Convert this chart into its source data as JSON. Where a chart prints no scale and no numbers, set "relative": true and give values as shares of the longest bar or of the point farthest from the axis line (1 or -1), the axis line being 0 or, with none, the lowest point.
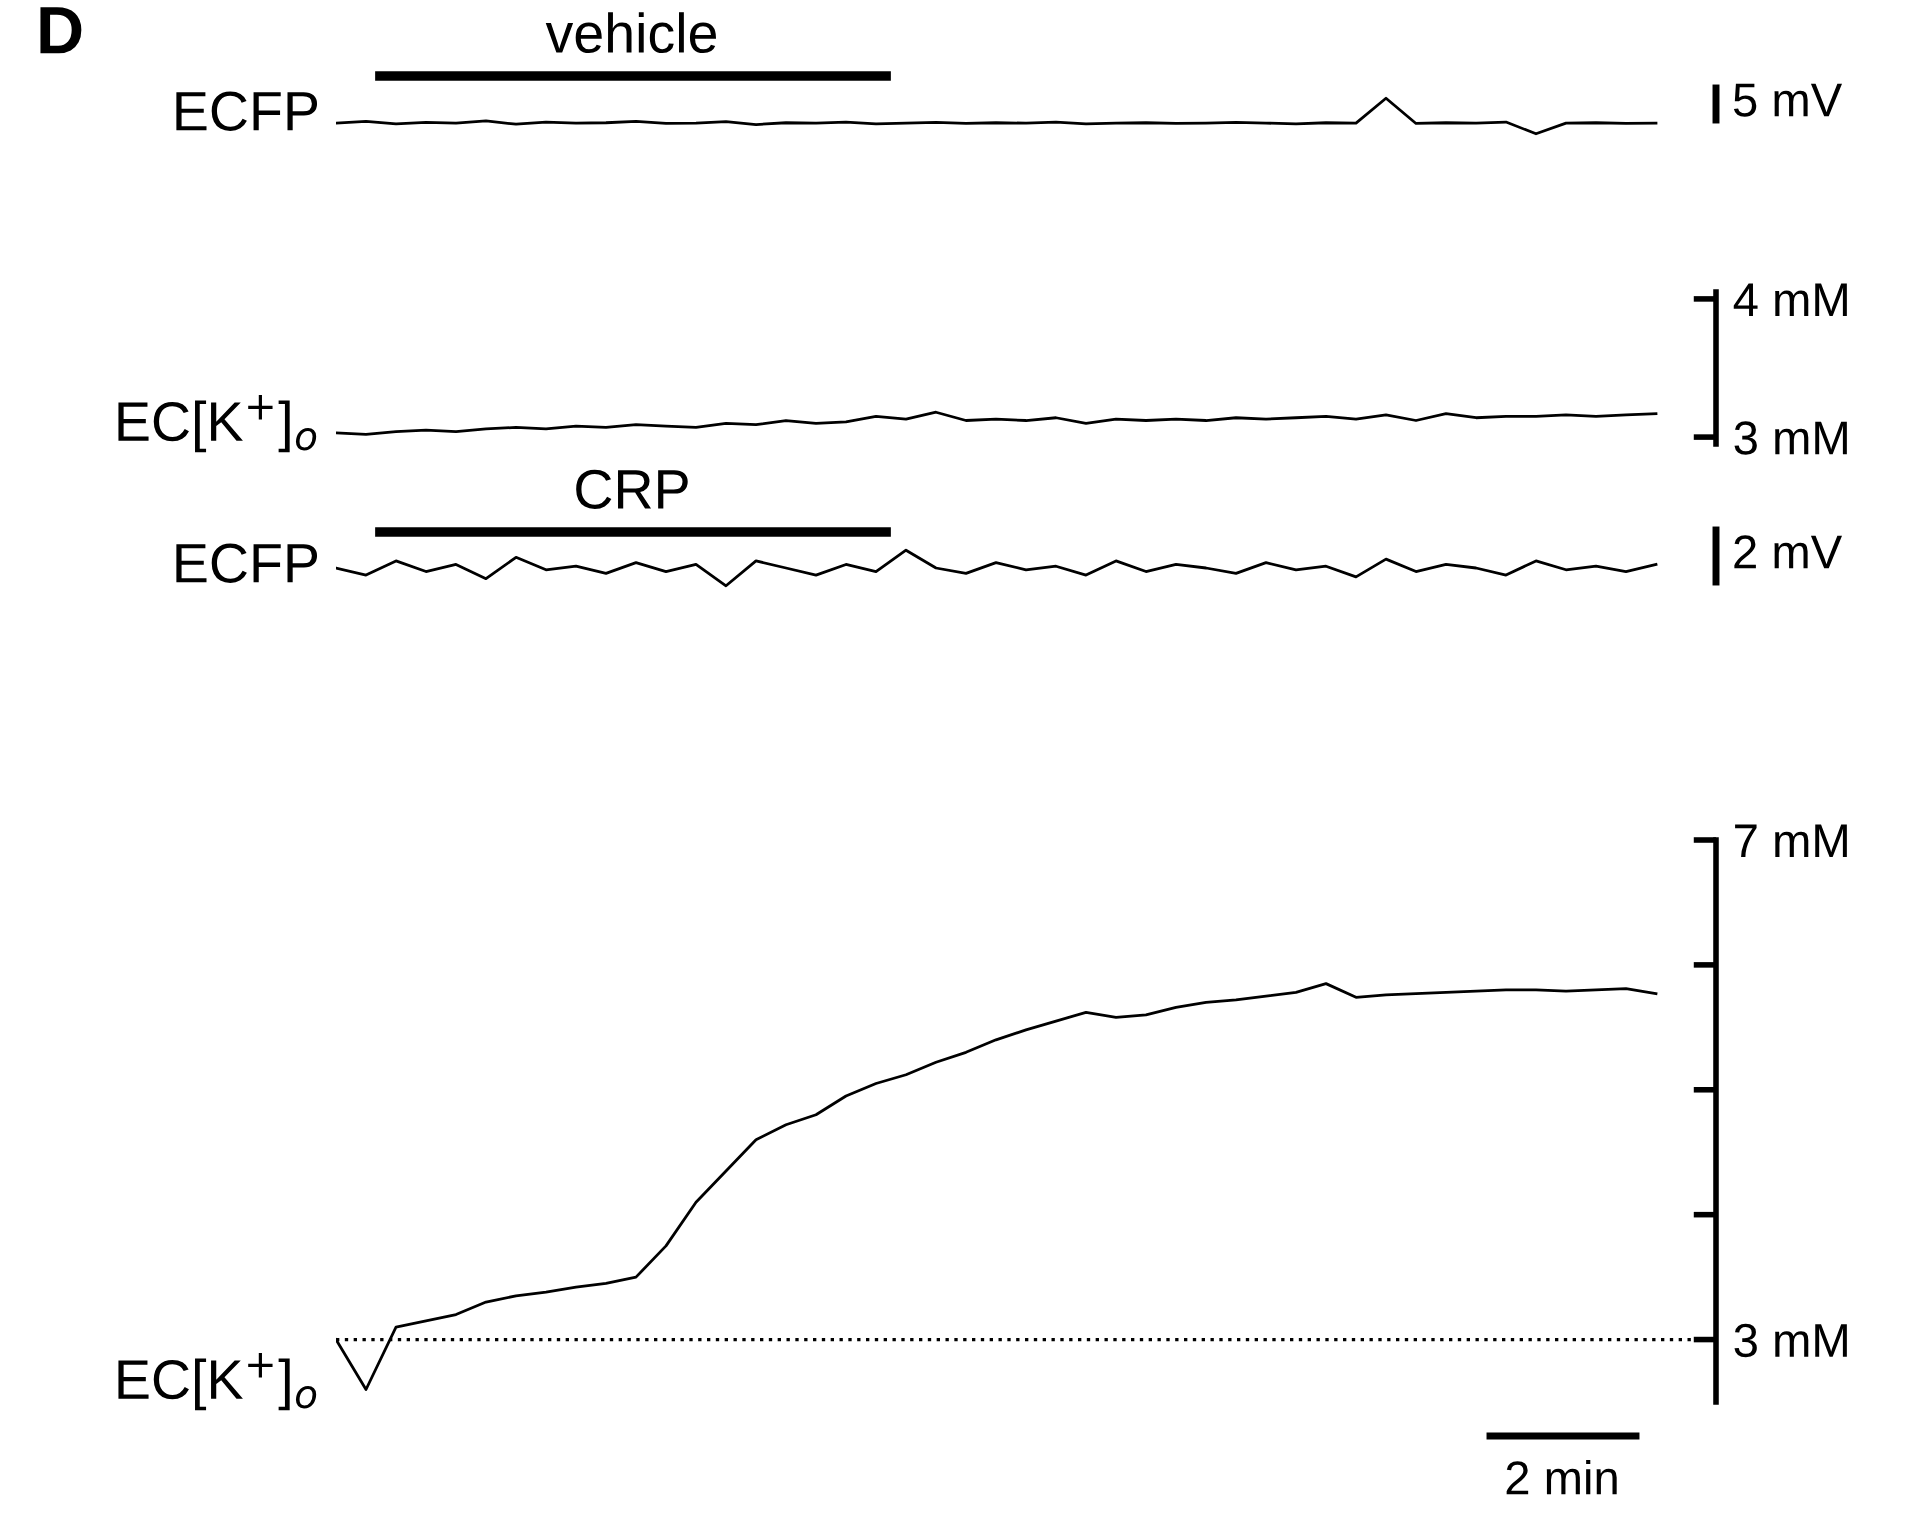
{
  "chart_data": [
    {
      "type": "line",
      "title": "D",
      "ylabel": "ECFP",
      "relative": true,
      "tick_labels": false,
      "legend": false,
      "grid": false,
      "marker": "none",
      "line_style": "solid",
      "annotations": [
        "vehicle",
        "5 mV"
      ],
      "categories": [
        null,
        null,
        null,
        null,
        null,
        null,
        null,
        null,
        null,
        null,
        null,
        null,
        null,
        null,
        null,
        null,
        null,
        null,
        null,
        null,
        null,
        null,
        null,
        null,
        null,
        null,
        null,
        null,
        null,
        null,
        null,
        null,
        null,
        null,
        null,
        null,
        null,
        null,
        null,
        null,
        null,
        null,
        null,
        null,
        null
      ],
      "series": [
        {
          "color": "#000000",
          "values": [
            0.3,
            0.35,
            0.28,
            0.32,
            0.3,
            0.36,
            0.27,
            0.33,
            0.3,
            0.31,
            0.35,
            0.29,
            0.3,
            0.34,
            0.26,
            0.31,
            0.3,
            0.33,
            0.28,
            0.3,
            0.32,
            0.29,
            0.31,
            0.3,
            0.33,
            0.28,
            0.3,
            0.31,
            0.29,
            0.3,
            0.32,
            0.3,
            0.28,
            0.31,
            0.3,
            1.0,
            0.29,
            0.31,
            0.3,
            0.33,
            0.0,
            0.3,
            0.31,
            0.29,
            0.3
          ]
        }
      ]
    },
    {
      "type": "line",
      "ylabel": "EC[K$^{+}$]$_{o}$",
      "tick_labels": "y",
      "legend": false,
      "grid": false,
      "marker": "none",
      "line_style": "solid",
      "ylim": [
        2.95,
        4.05
      ],
      "yticks": [
        {
          "value": 3,
          "label": "3 mM"
        },
        {
          "value": 4,
          "label": "4 mM"
        }
      ],
      "categories": [
        null,
        null,
        null,
        null,
        null,
        null,
        null,
        null,
        null,
        null,
        null,
        null,
        null,
        null,
        null,
        null,
        null,
        null,
        null,
        null,
        null,
        null,
        null,
        null,
        null,
        null,
        null,
        null,
        null,
        null,
        null,
        null,
        null,
        null,
        null,
        null,
        null,
        null,
        null,
        null,
        null,
        null,
        null,
        null,
        null
      ],
      "series": [
        {
          "color": "#000000",
          "values": [
            3.03,
            3.02,
            3.04,
            3.05,
            3.04,
            3.06,
            3.07,
            3.06,
            3.08,
            3.07,
            3.09,
            3.08,
            3.07,
            3.1,
            3.09,
            3.12,
            3.1,
            3.11,
            3.15,
            3.13,
            3.18,
            3.12,
            3.13,
            3.12,
            3.14,
            3.1,
            3.13,
            3.12,
            3.13,
            3.12,
            3.14,
            3.13,
            3.14,
            3.15,
            3.13,
            3.16,
            3.12,
            3.17,
            3.14,
            3.15,
            3.15,
            3.16,
            3.15,
            3.16,
            3.17
          ]
        }
      ]
    },
    {
      "type": "line",
      "ylabel": "ECFP",
      "relative": true,
      "tick_labels": false,
      "legend": false,
      "grid": false,
      "marker": "none",
      "line_style": "solid",
      "annotations": [
        "CRP",
        "2 mV"
      ],
      "categories": [
        null,
        null,
        null,
        null,
        null,
        null,
        null,
        null,
        null,
        null,
        null,
        null,
        null,
        null,
        null,
        null,
        null,
        null,
        null,
        null,
        null,
        null,
        null,
        null,
        null,
        null,
        null,
        null,
        null,
        null,
        null,
        null,
        null,
        null,
        null,
        null,
        null,
        null,
        null,
        null,
        null,
        null,
        null,
        null,
        null
      ],
      "series": [
        {
          "color": "#000000",
          "values": [
            0.5,
            0.3,
            0.7,
            0.4,
            0.6,
            0.2,
            0.8,
            0.45,
            0.55,
            0.35,
            0.65,
            0.4,
            0.6,
            0.0,
            0.7,
            0.5,
            0.3,
            0.6,
            0.4,
            1.0,
            0.5,
            0.35,
            0.65,
            0.45,
            0.55,
            0.3,
            0.7,
            0.4,
            0.6,
            0.5,
            0.35,
            0.65,
            0.45,
            0.55,
            0.25,
            0.75,
            0.4,
            0.6,
            0.5,
            0.3,
            0.7,
            0.45,
            0.55,
            0.4,
            0.6
          ]
        }
      ]
    },
    {
      "type": "line",
      "ylabel": "EC[K$^{+}$]$_{o}$",
      "tick_labels": "y",
      "legend": false,
      "grid": false,
      "marker": "none",
      "line_style": "solid",
      "ylim": [
        2.5,
        7
      ],
      "yticks": [
        {
          "value": 3,
          "label": "3 mM"
        },
        {
          "value": 4,
          "label": null
        },
        {
          "value": 5,
          "label": null
        },
        {
          "value": 6,
          "label": null
        },
        {
          "value": 7,
          "label": "7 mM"
        }
      ],
      "ref_lines": [
        {
          "axis": "y",
          "value": 3,
          "line_style": "dotted",
          "color": "#000000"
        }
      ],
      "annotations": [
        "2 min"
      ],
      "categories": [
        null,
        null,
        null,
        null,
        null,
        null,
        null,
        null,
        null,
        null,
        null,
        null,
        null,
        null,
        null,
        null,
        null,
        null,
        null,
        null,
        null,
        null,
        null,
        null,
        null,
        null,
        null,
        null,
        null,
        null,
        null,
        null,
        null,
        null,
        null,
        null,
        null,
        null,
        null,
        null,
        null,
        null,
        null,
        null,
        null
      ],
      "series": [
        {
          "color": "#000000",
          "values": [
            3.0,
            2.6,
            3.1,
            3.15,
            3.2,
            3.3,
            3.35,
            3.38,
            3.42,
            3.45,
            3.5,
            3.75,
            4.1,
            4.35,
            4.6,
            4.72,
            4.8,
            4.95,
            5.05,
            5.12,
            5.22,
            5.3,
            5.4,
            5.48,
            5.55,
            5.62,
            5.58,
            5.6,
            5.66,
            5.7,
            5.72,
            5.75,
            5.78,
            5.85,
            5.74,
            5.76,
            5.77,
            5.78,
            5.79,
            5.8,
            5.8,
            5.79,
            5.8,
            5.81,
            5.77
          ]
        }
      ]
    }
  ]
}
